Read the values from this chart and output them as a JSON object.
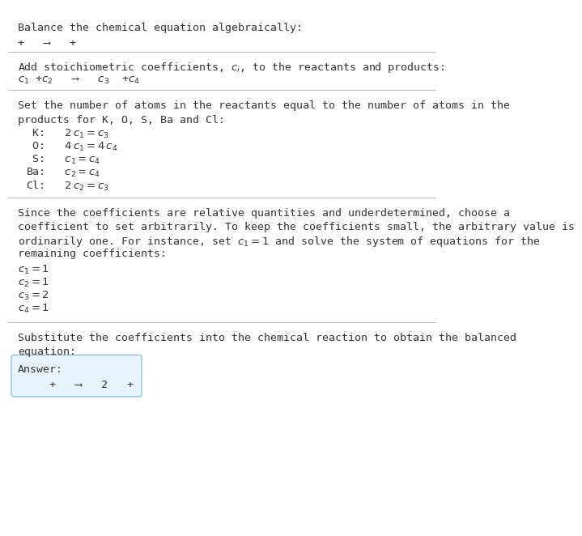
{
  "title": "Balance the chemical equation algebraically:",
  "intro_equation": "+   ⟶   +",
  "section1_label": "Add stoichiometric coefficients, $c_i$, to the reactants and products:",
  "section1_equation": "$c_1$ +$c_2$   ⟶   $c_3$  +$c_4$",
  "section2_label_line1": "Set the number of atoms in the reactants equal to the number of atoms in the",
  "section2_label_line2": "products for K, O, S, Ba and Cl:",
  "section2_equations": [
    " K:   $2\\,c_1 = c_3$",
    " O:   $4\\,c_1 = 4\\,c_4$",
    " S:   $c_1 = c_4$",
    "Ba:   $c_2 = c_4$",
    "Cl:   $2\\,c_2 = c_3$"
  ],
  "section3_label_lines": [
    "Since the coefficients are relative quantities and underdetermined, choose a",
    "coefficient to set arbitrarily. To keep the coefficients small, the arbitrary value is",
    "ordinarily one. For instance, set $c_1 = 1$ and solve the system of equations for the",
    "remaining coefficients:"
  ],
  "section3_equations": [
    "$c_1 = 1$",
    "$c_2 = 1$",
    "$c_3 = 2$",
    "$c_4 = 1$"
  ],
  "section4_label_line1": "Substitute the coefficients into the chemical reaction to obtain the balanced",
  "section4_label_line2": "equation:",
  "answer_label": "Answer:",
  "answer_equation": "   +   ⟶   2   +",
  "bg_color": "#ffffff",
  "answer_box_color": "#e8f4fb",
  "answer_box_edge_color": "#90bfd8",
  "text_color": "#333333",
  "line_color": "#bbbbbb",
  "font_size": 9.5,
  "font_size_title": 9.5
}
